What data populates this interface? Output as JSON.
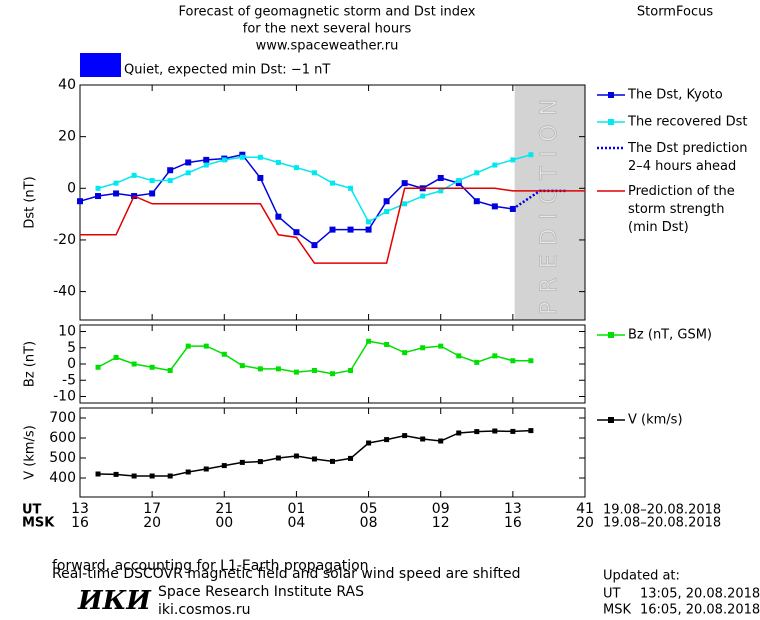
{
  "header": {
    "title": [
      "Forecast of geomagnetic storm and Dst index",
      "for the next several hours",
      "www.spaceweather.ru"
    ],
    "brand": "StormFocus",
    "status": {
      "color": "#0000ff",
      "label": "Quiet, expected min Dst: −1 nT"
    }
  },
  "chart_data": [
    {
      "type": "line",
      "ylabel": "Dst (nT)",
      "xlim": [
        13,
        41
      ],
      "ylim": [
        -51,
        40
      ],
      "yticks": [
        -40,
        -20,
        0,
        20,
        40
      ],
      "prediction": {
        "xlim": [
          37.1,
          41
        ],
        "label": "PREDICTION",
        "color": "#d3d3d3"
      },
      "series": [
        {
          "name": "The Dst, Kyoto",
          "color": "#0000e0",
          "marker": true,
          "x": [
            13,
            14,
            15,
            16,
            17,
            18,
            19,
            20,
            21,
            22,
            23,
            24,
            25,
            26,
            27,
            28,
            29,
            30,
            31,
            32,
            33,
            34,
            35,
            36,
            37
          ],
          "values": [
            -5,
            -3,
            -2,
            -3,
            -2,
            7,
            10,
            11,
            11.5,
            13,
            4,
            -11,
            -17,
            -22,
            -16,
            -16,
            -16,
            -5,
            2,
            0,
            4,
            2,
            -5,
            -7,
            -8
          ]
        },
        {
          "name": "The recovered Dst",
          "color": "#00e8f0",
          "marker": true,
          "x": [
            14,
            15,
            16,
            17,
            18,
            19,
            20,
            21,
            22,
            23,
            24,
            25,
            26,
            27,
            28,
            29,
            30,
            31,
            32,
            33,
            34,
            35,
            36,
            37,
            38
          ],
          "values": [
            0,
            2,
            5,
            3,
            3,
            6,
            9,
            11,
            12,
            12,
            10,
            8,
            6,
            2,
            0,
            -13,
            -9,
            -6,
            -3,
            -1,
            3,
            6,
            9,
            11,
            13
          ]
        },
        {
          "name": "The Dst prediction\n2–4 hours ahead",
          "color": "#0000e0",
          "dash": true,
          "x": [
            37,
            38.5,
            40
          ],
          "values": [
            -8,
            -1,
            -1
          ]
        },
        {
          "name": "Prediction of the\nstorm strength\n(min Dst)",
          "color": "#e00000",
          "x": [
            13,
            15,
            16,
            17,
            23,
            24,
            25,
            26,
            30,
            31,
            36,
            37,
            41
          ],
          "values": [
            -18,
            -18,
            -3,
            -6,
            -6,
            -18,
            -19,
            -29,
            -29,
            0,
            0,
            -1,
            -1
          ]
        }
      ]
    },
    {
      "type": "line",
      "ylabel": "Bz (nT)",
      "xlim": [
        13,
        41
      ],
      "ylim": [
        -12,
        12
      ],
      "yticks": [
        -10,
        -5,
        0,
        5,
        10
      ],
      "series": [
        {
          "name": "Bz (nT, GSM)",
          "color": "#00e000",
          "marker": true,
          "x": [
            14,
            15,
            16,
            17,
            18,
            19,
            20,
            21,
            22,
            23,
            24,
            25,
            26,
            27,
            28,
            29,
            30,
            31,
            32,
            33,
            34,
            35,
            36,
            37,
            38
          ],
          "values": [
            -1,
            2,
            0,
            -1,
            -2,
            5.5,
            5.5,
            3,
            -0.5,
            -1.5,
            -1.5,
            -2.5,
            -2,
            -3,
            -2,
            7,
            6,
            3.5,
            5,
            5.5,
            2.5,
            0.5,
            2.5,
            1,
            1
          ]
        }
      ]
    },
    {
      "type": "line",
      "ylabel": "V (km/s)",
      "xlim": [
        13,
        41
      ],
      "ylim": [
        305,
        750
      ],
      "yticks": [
        400,
        500,
        600,
        700
      ],
      "series": [
        {
          "name": "V (km/s)",
          "color": "#000000",
          "marker": true,
          "x": [
            14,
            15,
            16,
            17,
            18,
            19,
            20,
            21,
            22,
            23,
            24,
            25,
            26,
            27,
            28,
            29,
            30,
            31,
            32,
            33,
            34,
            35,
            36,
            37,
            38
          ],
          "values": [
            420,
            418,
            410,
            410,
            410,
            430,
            445,
            462,
            478,
            482,
            500,
            510,
            495,
            483,
            498,
            575,
            592,
            612,
            595,
            585,
            625,
            632,
            635,
            633,
            637
          ]
        }
      ]
    }
  ],
  "time_axis": {
    "ut": {
      "name": "UT",
      "ticks": [
        13,
        17,
        21,
        {
          "value": 25,
          "label": "01"
        },
        {
          "value": 29,
          "label": "05"
        },
        {
          "value": 33,
          "label": "09"
        },
        {
          "value": 37,
          "label": "13"
        },
        41
      ],
      "dates": "19.08–20.08.2018"
    },
    "msk": {
      "name": "MSK",
      "ticks": [
        "16",
        "20",
        "00",
        "04",
        "08",
        "12",
        "16",
        "20"
      ],
      "dates": "19.08–20.08.2018"
    }
  },
  "footer": {
    "note": [
      "Real-time DSCOVR magnetic field and solar wind speed are shifted",
      "forward, accounting for L1-Earth propagation"
    ],
    "institute": {
      "logo": "ИКИ",
      "name": "Space Research Institute RAS",
      "url": "iki.cosmos.ru"
    },
    "updated": {
      "label": "Updated at:",
      "rows": [
        {
          "zone": "UT",
          "time": "13:05, 20.08.2018"
        },
        {
          "zone": "MSK",
          "time": "16:05, 20.08.2018"
        }
      ]
    }
  }
}
